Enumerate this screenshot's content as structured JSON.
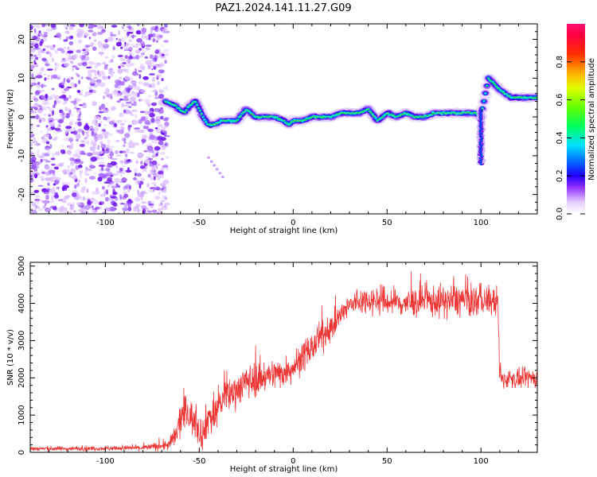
{
  "title": "PAZ1.2024.141.11.27.G09",
  "chart_data": [
    {
      "type": "heatmap",
      "xlabel": "Height of straight line (km)",
      "ylabel": "Frequency (Hz)",
      "xlim": [
        -140,
        130
      ],
      "ylim": [
        -25,
        24
      ],
      "xticks": [
        -100,
        -50,
        0,
        50,
        100
      ],
      "yticks": [
        -20,
        -10,
        0,
        10,
        20
      ],
      "colorbar": {
        "label": "Normalized spectral amplitude",
        "range": [
          0,
          1
        ],
        "ticks": [
          0.0,
          0.2,
          0.4,
          0.6,
          0.8
        ]
      },
      "noise_region_x": [
        -140,
        -67
      ],
      "ridge": {
        "x": [
          -68,
          -63,
          -58,
          -55,
          -52,
          -50,
          -48,
          -45,
          -42,
          -38,
          -35,
          -30,
          -25,
          -20,
          -15,
          -10,
          -5,
          -2,
          0,
          5,
          10,
          15,
          20,
          25,
          30,
          35,
          40,
          45,
          50,
          55,
          60,
          65,
          70,
          75,
          80,
          85,
          90,
          95,
          97,
          100,
          102,
          104,
          106,
          108,
          110,
          113,
          116,
          120,
          125,
          130
        ],
        "freq": [
          4,
          3,
          1,
          3,
          4,
          2,
          0,
          -2,
          -2,
          -1,
          -1,
          -1,
          2,
          0,
          0,
          0,
          -1,
          -2,
          -1,
          -1,
          0,
          0,
          0,
          1,
          1,
          1,
          2,
          -1,
          1,
          0,
          1,
          0,
          0,
          1,
          1,
          1,
          1,
          1,
          1,
          0,
          5,
          10,
          9,
          8,
          7,
          6,
          5,
          5,
          5,
          5
        ],
        "peak_amplitude": 1.0
      }
    },
    {
      "type": "line",
      "xlabel": "Height of straight line (km)",
      "ylabel": "SNR (10 * v/v)",
      "xlim": [
        -140,
        130
      ],
      "ylim": [
        0,
        5100
      ],
      "xticks": [
        -100,
        -50,
        0,
        50,
        100
      ],
      "yticks": [
        0,
        1000,
        2000,
        3000,
        4000,
        5000
      ],
      "color": "#ee3333",
      "series": [
        {
          "x": [
            -140,
            -120,
            -100,
            -80,
            -66,
            -62,
            -60,
            -57,
            -55,
            -52,
            -50,
            -48,
            -45,
            -42,
            -40,
            -35,
            -30,
            -25,
            -20,
            -15,
            -10,
            -5,
            0,
            5,
            10,
            15,
            20,
            25,
            30,
            35,
            40,
            50,
            60,
            70,
            80,
            90,
            95,
            100,
            105,
            109,
            110,
            112,
            115,
            120,
            125,
            130
          ],
          "values": [
            100,
            100,
            110,
            120,
            200,
            500,
            900,
            1100,
            1000,
            800,
            600,
            500,
            1000,
            900,
            1300,
            1500,
            1700,
            1900,
            1950,
            2050,
            2100,
            2150,
            2300,
            2550,
            2800,
            3100,
            3350,
            3650,
            3950,
            4050,
            4100,
            4050,
            4000,
            4050,
            4050,
            4100,
            4050,
            4100,
            4050,
            4050,
            2000,
            1950,
            2000,
            1950,
            2000,
            2000
          ],
          "noise": [
            60,
            60,
            60,
            70,
            150,
            400,
            500,
            500,
            450,
            450,
            450,
            450,
            500,
            500,
            500,
            450,
            450,
            450,
            450,
            450,
            400,
            400,
            400,
            400,
            400,
            400,
            350,
            350,
            350,
            350,
            350,
            400,
            400,
            400,
            450,
            450,
            450,
            400,
            400,
            400,
            300,
            250,
            250,
            250,
            250,
            250
          ]
        }
      ]
    }
  ]
}
